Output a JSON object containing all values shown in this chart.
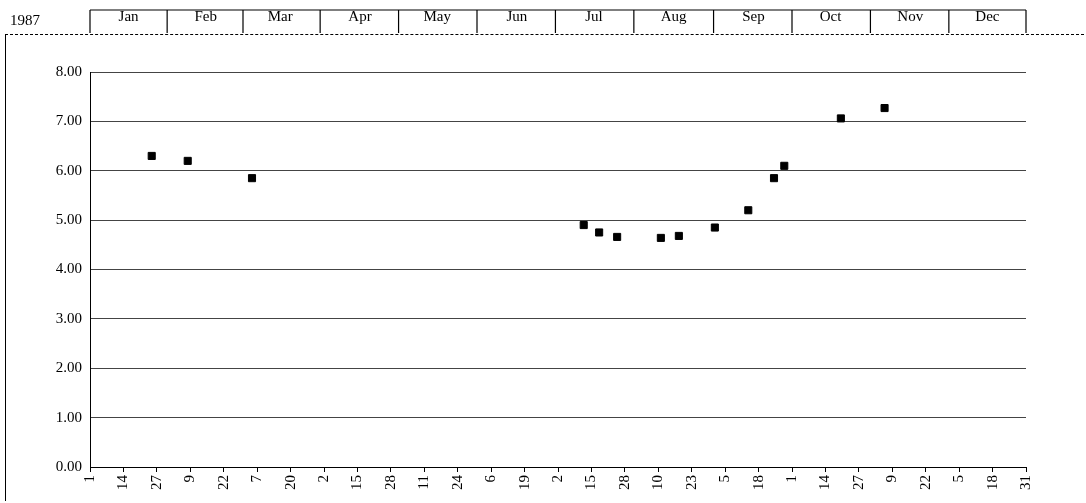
{
  "chart_data": {
    "type": "scatter",
    "title": "1987",
    "x": [
      "1987-01-25",
      "1987-02-08",
      "1987-03-05",
      "1987-07-12",
      "1987-07-18",
      "1987-07-25",
      "1987-08-11",
      "1987-08-18",
      "1987-09-01",
      "1987-09-14",
      "1987-09-24",
      "1987-09-28",
      "1987-10-20",
      "1987-11-06"
    ],
    "series": [
      {
        "color": "#000000",
        "values": [
          6.3,
          6.2,
          5.85,
          4.9,
          4.75,
          4.66,
          4.64,
          4.68,
          4.85,
          5.2,
          5.85,
          6.1,
          7.06,
          7.27
        ]
      }
    ],
    "xlim": [
      "1987-01-01",
      "1987-12-31"
    ],
    "xticks": [
      {
        "value": "1987-01-01",
        "label": "1"
      },
      {
        "value": "1987-01-14",
        "label": "14"
      },
      {
        "value": "1987-01-27",
        "label": "27"
      },
      {
        "value": "1987-02-09",
        "label": "9"
      },
      {
        "value": "1987-02-22",
        "label": "22"
      },
      {
        "value": "1987-03-07",
        "label": "7"
      },
      {
        "value": "1987-03-20",
        "label": "20"
      },
      {
        "value": "1987-04-02",
        "label": "2"
      },
      {
        "value": "1987-04-15",
        "label": "15"
      },
      {
        "value": "1987-04-28",
        "label": "28"
      },
      {
        "value": "1987-05-11",
        "label": "11"
      },
      {
        "value": "1987-05-24",
        "label": "24"
      },
      {
        "value": "1987-06-06",
        "label": "6"
      },
      {
        "value": "1987-06-19",
        "label": "19"
      },
      {
        "value": "1987-07-02",
        "label": "2"
      },
      {
        "value": "1987-07-15",
        "label": "15"
      },
      {
        "value": "1987-07-28",
        "label": "28"
      },
      {
        "value": "1987-08-10",
        "label": "10"
      },
      {
        "value": "1987-08-23",
        "label": "23"
      },
      {
        "value": "1987-09-05",
        "label": "5"
      },
      {
        "value": "1987-09-18",
        "label": "18"
      },
      {
        "value": "1987-10-01",
        "label": "1"
      },
      {
        "value": "1987-10-14",
        "label": "14"
      },
      {
        "value": "1987-10-27",
        "label": "27"
      },
      {
        "value": "1987-11-09",
        "label": "9"
      },
      {
        "value": "1987-11-22",
        "label": "22"
      },
      {
        "value": "1987-12-05",
        "label": "5"
      },
      {
        "value": "1987-12-18",
        "label": "18"
      },
      {
        "value": "1987-12-31",
        "label": "31"
      }
    ],
    "x2lim": [
      "1987-01-01",
      "1987-12-31"
    ],
    "x2ticks": [
      {
        "value": "1987-01-16",
        "label": "Jan"
      },
      {
        "value": "1987-02-15",
        "label": "Feb"
      },
      {
        "value": "1987-03-16",
        "label": "Mar"
      },
      {
        "value": "1987-04-16",
        "label": "Apr"
      },
      {
        "value": "1987-05-16",
        "label": "May"
      },
      {
        "value": "1987-06-16",
        "label": "Jun"
      },
      {
        "value": "1987-07-16",
        "label": "Jul"
      },
      {
        "value": "1987-08-16",
        "label": "Aug"
      },
      {
        "value": "1987-09-16",
        "label": "Sep"
      },
      {
        "value": "1987-10-16",
        "label": "Oct"
      },
      {
        "value": "1987-11-16",
        "label": "Nov"
      },
      {
        "value": "1987-12-16",
        "label": "Dec"
      }
    ],
    "ylim": [
      0,
      8
    ],
    "yticks": [
      {
        "value": 0,
        "label": "0.00"
      },
      {
        "value": 1,
        "label": "1.00"
      },
      {
        "value": 2,
        "label": "2.00"
      },
      {
        "value": 3,
        "label": "3.00"
      },
      {
        "value": 4,
        "label": "4.00"
      },
      {
        "value": 5,
        "label": "5.00"
      },
      {
        "value": 6,
        "label": "6.00"
      },
      {
        "value": 7,
        "label": "7.00"
      },
      {
        "value": 8,
        "label": "8.00"
      }
    ],
    "grid": "y",
    "legend": false,
    "marker": "square"
  }
}
